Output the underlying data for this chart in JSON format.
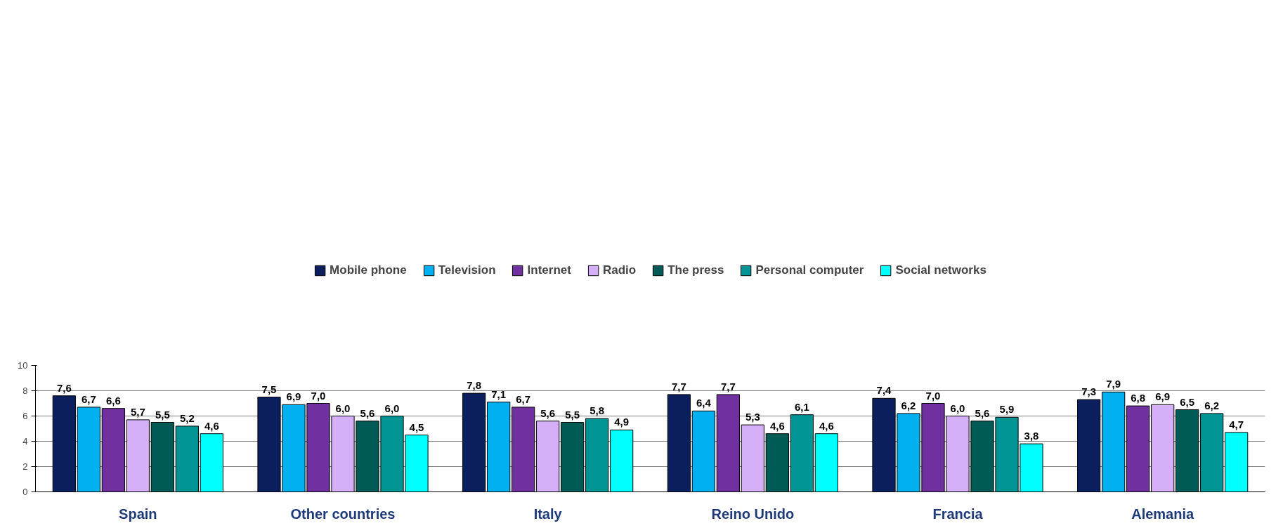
{
  "chart_data": {
    "type": "bar",
    "categories": [
      "Spain",
      "Other countries",
      "Italy",
      "Reino Unido",
      "Francia",
      "Alemania"
    ],
    "series": [
      {
        "name": "Mobile phone",
        "color": "#0b1f5e",
        "values": [
          7.6,
          7.5,
          7.8,
          7.7,
          7.4,
          7.3
        ],
        "value_labels": [
          "7,6",
          "7,5",
          "7,8",
          "7,7",
          "7,4",
          "7,3"
        ]
      },
      {
        "name": "Television",
        "color": "#00b0f0",
        "values": [
          6.7,
          6.9,
          7.1,
          6.4,
          6.2,
          7.9
        ],
        "value_labels": [
          "6,7",
          "6,9",
          "7,1",
          "6,4",
          "6,2",
          "7,9"
        ]
      },
      {
        "name": "Internet",
        "color": "#7030a0",
        "values": [
          6.6,
          7.0,
          6.7,
          7.7,
          7.0,
          6.8
        ],
        "value_labels": [
          "6,6",
          "7,0",
          "6,7",
          "7,7",
          "7,0",
          "6,8"
        ]
      },
      {
        "name": "Radio",
        "color": "#d5b0f8",
        "values": [
          5.7,
          6.0,
          5.6,
          5.3,
          6.0,
          6.9
        ],
        "value_labels": [
          "5,7",
          "6,0",
          "5,6",
          "5,3",
          "6,0",
          "6,9"
        ]
      },
      {
        "name": "The press",
        "color": "#005a56",
        "values": [
          5.5,
          5.6,
          5.5,
          4.6,
          5.6,
          6.5
        ],
        "value_labels": [
          "5,5",
          "5,6",
          "5,5",
          "4,6",
          "5,6",
          "6,5"
        ]
      },
      {
        "name": "Personal computer",
        "color": "#009494",
        "values": [
          5.2,
          6.0,
          5.8,
          6.1,
          5.9,
          6.2
        ],
        "value_labels": [
          "5,2",
          "6,0",
          "5,8",
          "6,1",
          "5,9",
          "6,2"
        ]
      },
      {
        "name": "Social networks",
        "color": "#00ffff",
        "values": [
          4.6,
          4.5,
          4.9,
          4.6,
          3.8,
          4.7
        ],
        "value_labels": [
          "4,6",
          "4,5",
          "4,9",
          "4,6",
          "3,8",
          "4,7"
        ]
      }
    ],
    "ylim": [
      0,
      10
    ],
    "yticks": [
      0,
      2,
      4,
      6,
      8,
      10
    ],
    "grid": "y",
    "legend": "top"
  }
}
